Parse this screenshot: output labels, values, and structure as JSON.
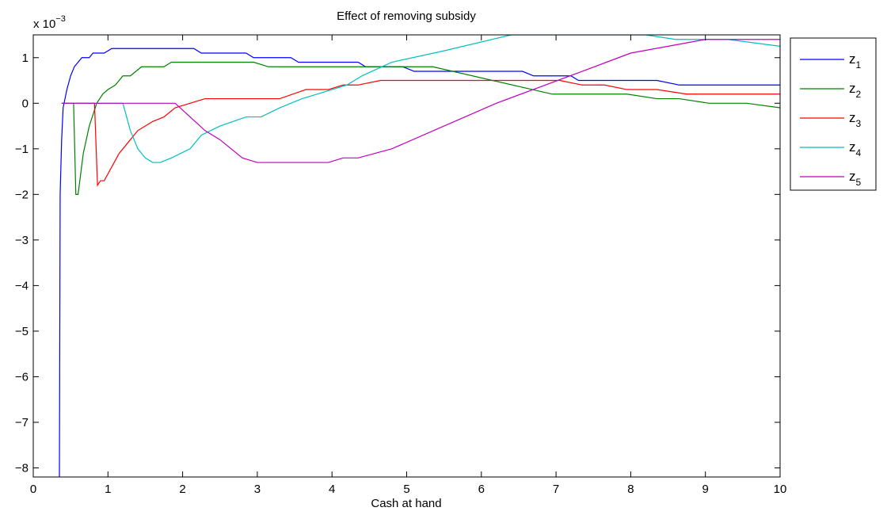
{
  "chart_data": {
    "type": "line",
    "title": "Effect of removing subsidy",
    "xlabel": "Cash at hand",
    "ylabel": "",
    "y_exponent_base": "x 10",
    "y_exponent_power": "−3",
    "xlim": [
      0,
      10
    ],
    "ylim": [
      -8.2,
      1.5
    ],
    "xticks": [
      0,
      1,
      2,
      3,
      4,
      5,
      6,
      7,
      8,
      9,
      10
    ],
    "yticks": [
      -8,
      -7,
      -6,
      -5,
      -4,
      -3,
      -2,
      -1,
      0,
      1
    ],
    "grid": false,
    "legend_position": "outside-right-top",
    "series": [
      {
        "name": "z",
        "subscript": "1",
        "color": "#0000ff",
        "points": [
          [
            0.35,
            -8.2
          ],
          [
            0.36,
            -2.0
          ],
          [
            0.38,
            -0.8
          ],
          [
            0.4,
            -0.1
          ],
          [
            0.45,
            0.3
          ],
          [
            0.5,
            0.6
          ],
          [
            0.55,
            0.8
          ],
          [
            0.6,
            0.9
          ],
          [
            0.65,
            1.0
          ],
          [
            0.7,
            1.0
          ],
          [
            0.75,
            1.0
          ],
          [
            0.8,
            1.1
          ],
          [
            0.95,
            1.1
          ],
          [
            1.05,
            1.2
          ],
          [
            2.15,
            1.2
          ],
          [
            2.25,
            1.1
          ],
          [
            2.85,
            1.1
          ],
          [
            2.95,
            1.0
          ],
          [
            3.45,
            1.0
          ],
          [
            3.55,
            0.9
          ],
          [
            4.35,
            0.9
          ],
          [
            4.45,
            0.8
          ],
          [
            4.95,
            0.8
          ],
          [
            5.1,
            0.7
          ],
          [
            6.55,
            0.7
          ],
          [
            6.7,
            0.6
          ],
          [
            7.2,
            0.6
          ],
          [
            7.3,
            0.5
          ],
          [
            8.35,
            0.5
          ],
          [
            8.65,
            0.4
          ],
          [
            10.0,
            0.4
          ]
        ]
      },
      {
        "name": "z",
        "subscript": "2",
        "color": "#008000",
        "points": [
          [
            0.38,
            0.0
          ],
          [
            0.54,
            0.0
          ],
          [
            0.57,
            -2.0
          ],
          [
            0.6,
            -2.0
          ],
          [
            0.67,
            -1.1
          ],
          [
            0.75,
            -0.5
          ],
          [
            0.85,
            0.0
          ],
          [
            0.93,
            0.2
          ],
          [
            1.0,
            0.3
          ],
          [
            1.1,
            0.4
          ],
          [
            1.2,
            0.6
          ],
          [
            1.3,
            0.6
          ],
          [
            1.45,
            0.8
          ],
          [
            1.6,
            0.8
          ],
          [
            1.75,
            0.8
          ],
          [
            1.85,
            0.9
          ],
          [
            2.95,
            0.9
          ],
          [
            3.15,
            0.8
          ],
          [
            5.35,
            0.8
          ],
          [
            6.95,
            0.2
          ],
          [
            7.95,
            0.2
          ],
          [
            8.35,
            0.1
          ],
          [
            8.65,
            0.1
          ],
          [
            9.05,
            0.0
          ],
          [
            9.55,
            0.0
          ],
          [
            10.0,
            -0.1
          ]
        ]
      },
      {
        "name": "z",
        "subscript": "3",
        "color": "#ff0000",
        "points": [
          [
            0.38,
            0.0
          ],
          [
            0.82,
            0.0
          ],
          [
            0.86,
            -1.8
          ],
          [
            0.9,
            -1.7
          ],
          [
            0.95,
            -1.7
          ],
          [
            1.05,
            -1.4
          ],
          [
            1.15,
            -1.1
          ],
          [
            1.3,
            -0.8
          ],
          [
            1.4,
            -0.6
          ],
          [
            1.5,
            -0.5
          ],
          [
            1.6,
            -0.4
          ],
          [
            1.75,
            -0.3
          ],
          [
            1.9,
            -0.1
          ],
          [
            2.1,
            0.0
          ],
          [
            2.3,
            0.1
          ],
          [
            3.3,
            0.1
          ],
          [
            3.65,
            0.3
          ],
          [
            3.95,
            0.3
          ],
          [
            4.15,
            0.4
          ],
          [
            4.35,
            0.4
          ],
          [
            4.65,
            0.5
          ],
          [
            7.05,
            0.5
          ],
          [
            7.35,
            0.4
          ],
          [
            7.65,
            0.4
          ],
          [
            7.95,
            0.3
          ],
          [
            8.35,
            0.3
          ],
          [
            8.75,
            0.2
          ],
          [
            10.0,
            0.2
          ]
        ]
      },
      {
        "name": "z",
        "subscript": "4",
        "color": "#00bfbf",
        "points": [
          [
            0.38,
            0.0
          ],
          [
            1.2,
            0.0
          ],
          [
            1.3,
            -0.6
          ],
          [
            1.4,
            -1.0
          ],
          [
            1.5,
            -1.2
          ],
          [
            1.6,
            -1.3
          ],
          [
            1.7,
            -1.3
          ],
          [
            1.85,
            -1.2
          ],
          [
            2.1,
            -1.0
          ],
          [
            2.25,
            -0.7
          ],
          [
            2.5,
            -0.5
          ],
          [
            2.85,
            -0.3
          ],
          [
            3.05,
            -0.3
          ],
          [
            3.3,
            -0.1
          ],
          [
            3.6,
            0.1
          ],
          [
            4.2,
            0.4
          ],
          [
            4.4,
            0.6
          ],
          [
            4.8,
            0.9
          ],
          [
            5.5,
            1.15
          ],
          [
            6.4,
            1.5
          ],
          [
            8.2,
            1.5
          ],
          [
            8.6,
            1.4
          ],
          [
            9.3,
            1.4
          ],
          [
            10.0,
            1.25
          ]
        ]
      },
      {
        "name": "z",
        "subscript": "5",
        "color": "#bf00bf",
        "points": [
          [
            0.38,
            0.0
          ],
          [
            1.9,
            0.0
          ],
          [
            2.1,
            -0.3
          ],
          [
            2.3,
            -0.6
          ],
          [
            2.5,
            -0.8
          ],
          [
            2.8,
            -1.2
          ],
          [
            3.0,
            -1.3
          ],
          [
            3.95,
            -1.3
          ],
          [
            4.15,
            -1.2
          ],
          [
            4.35,
            -1.2
          ],
          [
            4.8,
            -1.0
          ],
          [
            5.5,
            -0.5
          ],
          [
            6.2,
            0.0
          ],
          [
            7.35,
            0.7
          ],
          [
            8.0,
            1.1
          ],
          [
            8.5,
            1.25
          ],
          [
            9.0,
            1.4
          ],
          [
            9.5,
            1.4
          ],
          [
            10.0,
            1.4
          ]
        ]
      }
    ]
  }
}
